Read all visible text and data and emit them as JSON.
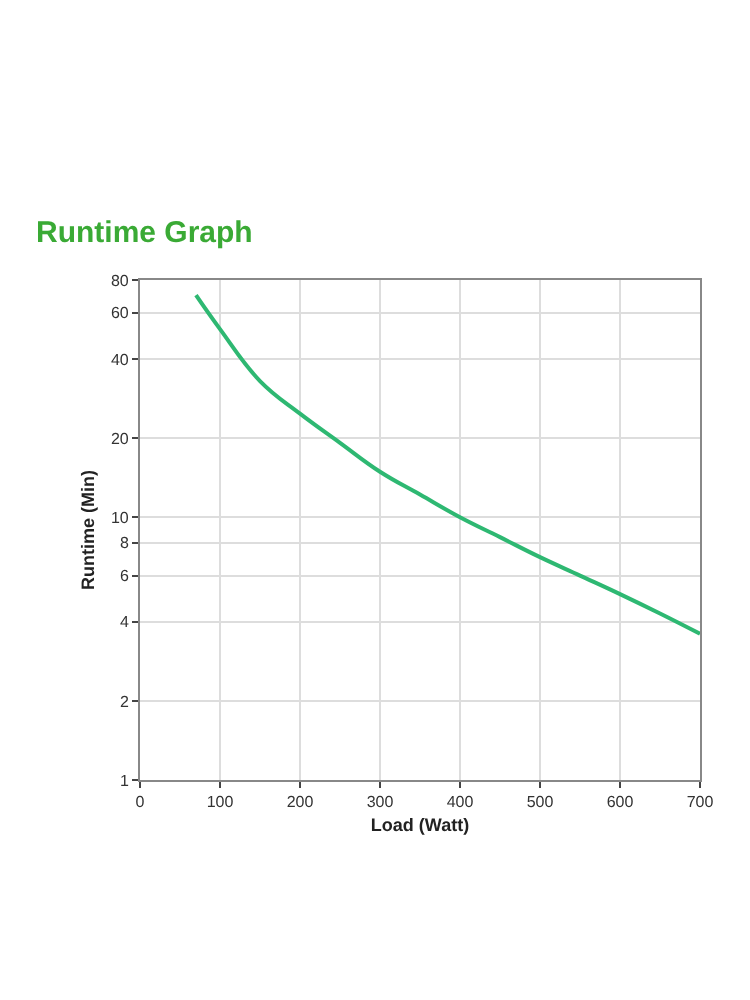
{
  "chart_data": {
    "type": "line",
    "title": "Runtime Graph",
    "xlabel": "Load (Watt)",
    "ylabel": "Runtime (Min)",
    "x": [
      70,
      100,
      150,
      200,
      250,
      300,
      350,
      400,
      450,
      500,
      550,
      600,
      650,
      700
    ],
    "series": [
      {
        "color": "#2eb872",
        "values": [
          70,
          52,
          33,
          24.8,
          19.2,
          14.9,
          12.2,
          10,
          8.4,
          7.05,
          6,
          5.1,
          4.3,
          3.6
        ]
      }
    ],
    "xlim": [
      0,
      700
    ],
    "xticks": [
      0,
      100,
      200,
      300,
      400,
      500,
      600,
      700
    ],
    "ylim": [
      1,
      80
    ],
    "yticks": [
      1,
      2,
      4,
      6,
      8,
      10,
      20,
      40,
      60,
      80
    ],
    "log": "y",
    "grid": true,
    "marker": "none",
    "line_style": "solid"
  }
}
